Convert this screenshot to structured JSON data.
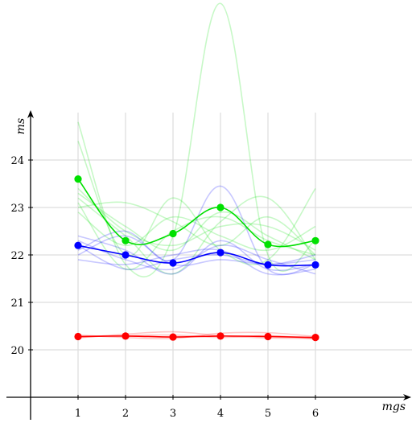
{
  "chart_data": {
    "type": "line",
    "xlabel": "mgs",
    "ylabel": "ms",
    "x": [
      1,
      2,
      3,
      4,
      5,
      6
    ],
    "x_ticks": [
      "1",
      "2",
      "3",
      "4",
      "5",
      "6"
    ],
    "y_ticks": [
      "20",
      "21",
      "22",
      "23",
      "24"
    ],
    "xlim": [
      0,
      8
    ],
    "ylim": [
      19,
      25
    ],
    "grid": true,
    "legend": "none",
    "colors": {
      "green": "#00e000",
      "blue": "#0000ff",
      "red": "#ff0000",
      "grid": "#dddddd"
    },
    "series": [
      {
        "color": "#00e000",
        "values": [
          23.6,
          22.3,
          22.45,
          23.0,
          22.22,
          22.3
        ]
      },
      {
        "color": "#0000ff",
        "values": [
          22.2,
          22.0,
          21.83,
          22.05,
          21.79,
          21.79
        ]
      },
      {
        "color": "#ff0000",
        "values": [
          20.28,
          20.29,
          20.27,
          20.29,
          20.28,
          20.26
        ]
      }
    ],
    "faint_series": [
      {
        "color": "#00e000",
        "values": [
          24.8,
          21.8,
          22.4,
          27.3,
          22.0,
          22.3
        ]
      },
      {
        "color": "#00e000",
        "values": [
          23.2,
          22.4,
          21.6,
          22.7,
          23.2,
          21.9
        ]
      },
      {
        "color": "#00e000",
        "values": [
          23.0,
          23.1,
          22.7,
          22.2,
          22.8,
          22.0
        ]
      },
      {
        "color": "#00e000",
        "values": [
          24.4,
          22.0,
          23.2,
          22.1,
          21.9,
          23.4
        ]
      },
      {
        "color": "#00e000",
        "values": [
          23.4,
          22.5,
          22.2,
          22.6,
          22.6,
          22.1
        ]
      },
      {
        "color": "#00e000",
        "values": [
          23.1,
          21.7,
          22.5,
          22.8,
          22.3,
          22.0
        ]
      },
      {
        "color": "#00e000",
        "values": [
          22.9,
          22.2,
          22.8,
          22.4,
          22.1,
          22.6
        ]
      },
      {
        "color": "#00e000",
        "values": [
          23.3,
          22.6,
          22.1,
          22.9,
          22.4,
          21.9
        ]
      },
      {
        "color": "#0000ff",
        "values": [
          22.1,
          22.5,
          21.9,
          23.45,
          21.7,
          21.8
        ]
      },
      {
        "color": "#0000ff",
        "values": [
          22.3,
          21.9,
          21.7,
          22.2,
          21.9,
          21.6
        ]
      },
      {
        "color": "#0000ff",
        "values": [
          22.0,
          22.4,
          21.8,
          21.9,
          21.8,
          21.9
        ]
      },
      {
        "color": "#0000ff",
        "values": [
          21.9,
          21.8,
          22.0,
          22.1,
          21.6,
          21.7
        ]
      },
      {
        "color": "#0000ff",
        "values": [
          22.2,
          21.7,
          21.9,
          22.0,
          21.8,
          22.0
        ]
      },
      {
        "color": "#0000ff",
        "values": [
          22.4,
          22.1,
          21.6,
          22.3,
          21.7,
          21.8
        ]
      },
      {
        "color": "#ff0000",
        "values": [
          20.25,
          20.33,
          20.38,
          20.3,
          20.25,
          20.24
        ]
      },
      {
        "color": "#ff0000",
        "values": [
          20.31,
          20.26,
          20.24,
          20.35,
          20.36,
          20.28
        ]
      },
      {
        "color": "#ff0000",
        "values": [
          20.27,
          20.3,
          20.31,
          20.26,
          20.3,
          20.23
        ]
      }
    ]
  }
}
